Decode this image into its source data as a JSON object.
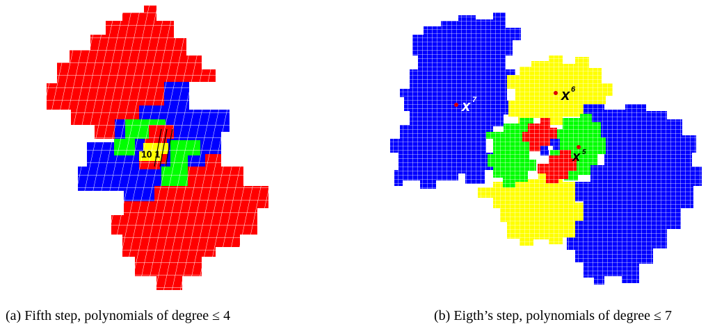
{
  "figure_a": {
    "center_label": "10 1",
    "caption": "(a) Fifth step, polynomials of degree ≤ 4"
  },
  "figure_b": {
    "marker_x7": "x",
    "marker_x7_exp": "7",
    "marker_x6": "x",
    "marker_x6_exp": "6",
    "marker_x5": "x",
    "marker_x5_exp": "5",
    "caption": "(b) Eigth’s step, polynomials of degree ≤ 7"
  },
  "colors": {
    "red": "#ff0000",
    "blue": "#0000ff",
    "green": "#00ff00",
    "yellow": "#ffff00",
    "point": "#dd0000"
  }
}
